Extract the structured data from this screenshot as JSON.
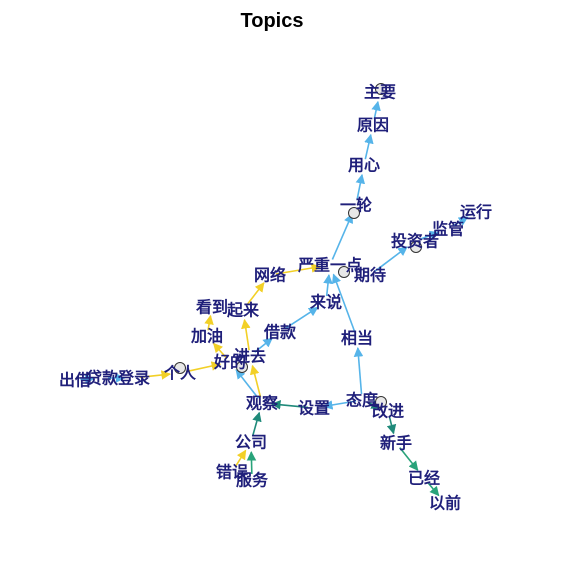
{
  "title": "Topics",
  "colors": {
    "blue": "#56b4e9",
    "yellow": "#f2d027",
    "teal": "#1f8a7a",
    "green": "#29a37a",
    "navy": "#1f1f7a"
  },
  "nodes": [
    {
      "id": "zhuyao",
      "label": "主要",
      "circle": true
    },
    {
      "id": "yuanyin",
      "label": "原因",
      "circle": false
    },
    {
      "id": "yongxin",
      "label": "用心",
      "circle": false
    },
    {
      "id": "yilun",
      "label": "一轮",
      "circle": true
    },
    {
      "id": "yunxing",
      "label": "运行",
      "circle": false
    },
    {
      "id": "jianguan",
      "label": "监管",
      "circle": false
    },
    {
      "id": "touzizhe",
      "label": "投资者",
      "circle": true
    },
    {
      "id": "qidai",
      "label": "期待",
      "circle": false
    },
    {
      "id": "yanzhong",
      "label": "严重一点",
      "circle": true
    },
    {
      "id": "wangluo",
      "label": "网络",
      "circle": false
    },
    {
      "id": "laishuo",
      "label": "来说",
      "circle": false
    },
    {
      "id": "kandao",
      "label": "看到",
      "circle": false
    },
    {
      "id": "qilai",
      "label": "起来",
      "circle": false
    },
    {
      "id": "jiekuan",
      "label": "借款",
      "circle": false
    },
    {
      "id": "jiayou",
      "label": "加油",
      "circle": false
    },
    {
      "id": "xiangdang",
      "label": "相当",
      "circle": false
    },
    {
      "id": "jinqu",
      "label": "进去",
      "circle": false
    },
    {
      "id": "haode",
      "label": "好的",
      "circle": true
    },
    {
      "id": "geren",
      "label": "个人",
      "circle": true
    },
    {
      "id": "chujie",
      "label": "出借",
      "circle": false
    },
    {
      "id": "daikuan",
      "label": "贷款",
      "circle": false
    },
    {
      "id": "denglu",
      "label": "登录",
      "circle": false
    },
    {
      "id": "guancha",
      "label": "观察",
      "circle": false
    },
    {
      "id": "shezhi",
      "label": "设置",
      "circle": false
    },
    {
      "id": "taidu",
      "label": "态度",
      "circle": false
    },
    {
      "id": "gaijin",
      "label": "改进",
      "circle": true
    },
    {
      "id": "gongsi",
      "label": "公司",
      "circle": false
    },
    {
      "id": "xinshou",
      "label": "新手",
      "circle": false
    },
    {
      "id": "cuowu",
      "label": "错误",
      "circle": false
    },
    {
      "id": "fuwu",
      "label": "服务",
      "circle": false
    },
    {
      "id": "yijing",
      "label": "已经",
      "circle": false
    },
    {
      "id": "yiqian",
      "label": "以前",
      "circle": false
    }
  ],
  "edges": [
    {
      "from": "yuanyin",
      "to": "zhuyao",
      "color": "blue"
    },
    {
      "from": "yongxin",
      "to": "yuanyin",
      "color": "blue"
    },
    {
      "from": "yilun",
      "to": "yongxin",
      "color": "blue"
    },
    {
      "from": "yanzhong",
      "to": "yilun",
      "color": "blue"
    },
    {
      "from": "qidai",
      "to": "touzizhe",
      "color": "blue"
    },
    {
      "from": "touzizhe",
      "to": "jianguan",
      "color": "blue"
    },
    {
      "from": "jianguan",
      "to": "yunxing",
      "color": "blue"
    },
    {
      "from": "wangluo",
      "to": "yanzhong",
      "color": "yellow"
    },
    {
      "from": "laishuo",
      "to": "yanzhong",
      "color": "blue"
    },
    {
      "from": "jiekuan",
      "to": "laishuo",
      "color": "blue"
    },
    {
      "from": "jinqu",
      "to": "jiekuan",
      "color": "blue"
    },
    {
      "from": "qilai",
      "to": "wangluo",
      "color": "yellow"
    },
    {
      "from": "jinqu",
      "to": "qilai",
      "color": "yellow"
    },
    {
      "from": "jiayou",
      "to": "kandao",
      "color": "yellow"
    },
    {
      "from": "haode",
      "to": "jiayou",
      "color": "yellow"
    },
    {
      "from": "geren",
      "to": "haode",
      "color": "yellow"
    },
    {
      "from": "denglu",
      "to": "geren",
      "color": "yellow"
    },
    {
      "from": "daikuan",
      "to": "denglu",
      "color": "blue"
    },
    {
      "from": "chujie",
      "to": "daikuan",
      "color": "blue"
    },
    {
      "from": "guancha",
      "to": "jinqu",
      "color": "yellow"
    },
    {
      "from": "guancha",
      "to": "haode",
      "color": "blue"
    },
    {
      "from": "shezhi",
      "to": "guancha",
      "color": "teal"
    },
    {
      "from": "taidu",
      "to": "shezhi",
      "color": "blue"
    },
    {
      "from": "taidu",
      "to": "xiangdang",
      "color": "blue"
    },
    {
      "from": "xiangdang",
      "to": "yanzhong",
      "color": "blue"
    },
    {
      "from": "gongsi",
      "to": "guancha",
      "color": "teal"
    },
    {
      "from": "cuowu",
      "to": "gongsi",
      "color": "yellow"
    },
    {
      "from": "fuwu",
      "to": "gongsi",
      "color": "green"
    },
    {
      "from": "taidu",
      "to": "gaijin",
      "color": "teal"
    },
    {
      "from": "gaijin",
      "to": "xinshou",
      "color": "teal"
    },
    {
      "from": "xinshou",
      "to": "yijing",
      "color": "green"
    },
    {
      "from": "yijing",
      "to": "yiqian",
      "color": "green"
    }
  ]
}
